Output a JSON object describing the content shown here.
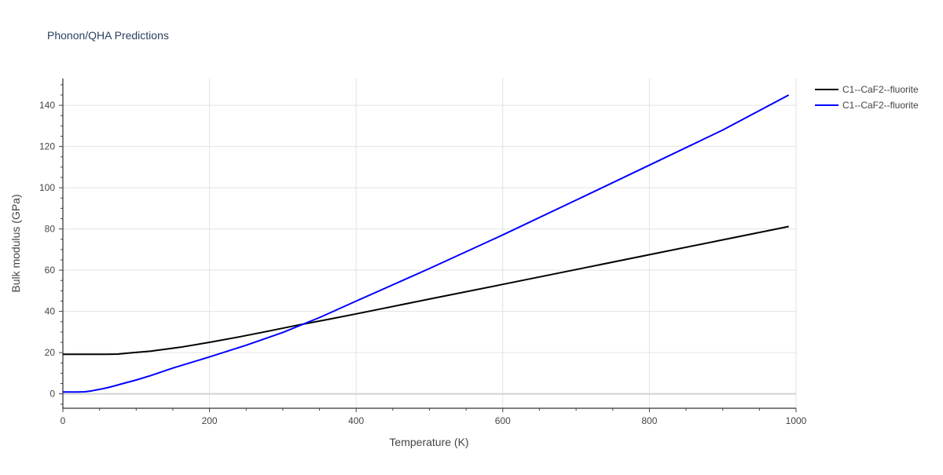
{
  "chart_data": {
    "type": "line",
    "title": "Phonon/QHA Predictions",
    "xlabel": "Temperature (K)",
    "ylabel": "Bulk modulus (GPa)",
    "xlim": [
      0,
      1000
    ],
    "ylim": [
      -7,
      153
    ],
    "x_ticks": [
      0,
      200,
      400,
      600,
      800,
      1000
    ],
    "y_ticks": [
      0,
      20,
      40,
      60,
      80,
      100,
      120,
      140
    ],
    "grid": true,
    "legend_position": "top-right",
    "series": [
      {
        "name": "C1--CaF2--fluorite",
        "color": "#000000",
        "x": [
          0,
          20,
          40,
          60,
          75,
          90,
          120,
          160,
          200,
          240,
          280,
          320,
          360,
          400,
          500,
          600,
          700,
          800,
          900,
          990
        ],
        "y": [
          19.2,
          19.2,
          19.2,
          19.2,
          19.3,
          19.8,
          20.7,
          22.6,
          25.0,
          27.6,
          30.4,
          33.3,
          36.0,
          38.8,
          46.0,
          53.1,
          60.3,
          67.5,
          74.7,
          81.2
        ]
      },
      {
        "name": "C1--CaF2--fluorite",
        "color": "#0000ff",
        "x": [
          0,
          10,
          20,
          30,
          40,
          50,
          60,
          70,
          80,
          100,
          120,
          150,
          200,
          250,
          300,
          350,
          400,
          500,
          600,
          700,
          800,
          900,
          990
        ],
        "y": [
          0.9,
          0.9,
          0.9,
          1.0,
          1.5,
          2.2,
          2.9,
          3.8,
          4.8,
          6.7,
          8.9,
          12.5,
          17.9,
          23.6,
          29.8,
          37.0,
          45.0,
          60.8,
          77.1,
          94.0,
          111.0,
          128.0,
          145.0
        ]
      }
    ]
  }
}
